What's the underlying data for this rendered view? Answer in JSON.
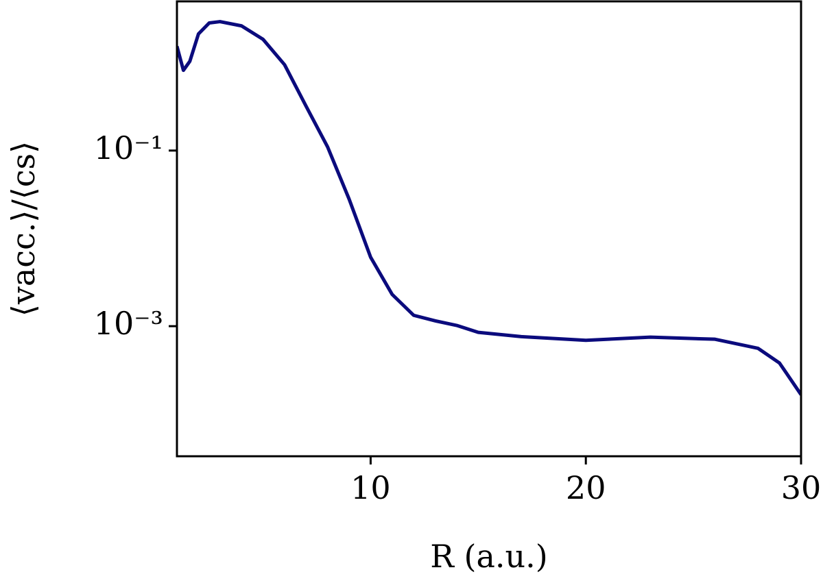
{
  "chart_data": {
    "type": "line",
    "xlabel": "R (a.u.)",
    "ylabel": "⟨vacc.⟩/⟨cs⟩",
    "x": [
      1,
      1.3,
      1.6,
      2,
      2.5,
      3,
      4,
      5,
      6,
      7,
      8,
      9,
      10,
      11,
      12,
      13,
      14,
      15,
      17,
      20,
      23,
      26,
      28,
      29,
      30
    ],
    "series": [
      {
        "color": "#0b0b7d",
        "values": [
          1.54,
          0.82,
          1.04,
          2.13,
          2.84,
          2.94,
          2.63,
          1.85,
          0.95,
          0.32,
          0.11,
          0.028,
          0.0061,
          0.0023,
          0.00133,
          0.00115,
          0.00102,
          0.00085,
          0.00076,
          0.00069,
          0.00075,
          0.00071,
          0.00056,
          0.00038,
          0.000166
        ]
      }
    ],
    "xlim": [
      1,
      30
    ],
    "xticks": [
      10,
      20,
      30
    ],
    "ylim": [
      3.3e-05,
      5
    ],
    "yscale": "log",
    "yticks": [
      {
        "value": 0.1,
        "label": "10⁻¹"
      },
      {
        "value": 0.001,
        "label": "10⁻³"
      }
    ]
  }
}
